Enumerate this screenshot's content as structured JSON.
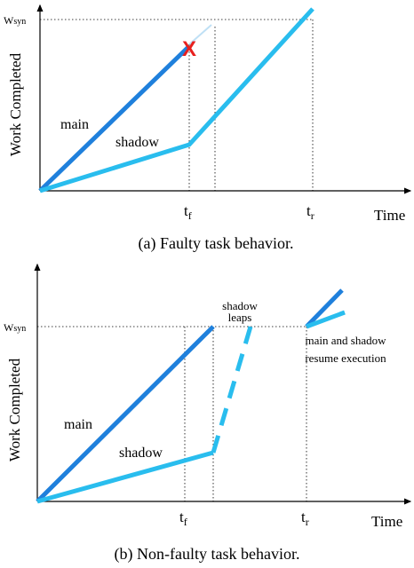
{
  "panels": [
    {
      "y_label": "Work Completed",
      "x_label": "Time",
      "w_base": "W",
      "w_sub": "syn",
      "tf_base": "t",
      "tf_sub": "f",
      "tr_base": "t",
      "tr_sub": "r",
      "main": "main",
      "shadow": "shadow",
      "marker": "X",
      "caption": "(a) Faulty task behavior."
    },
    {
      "y_label": "Work Completed",
      "x_label": "Time",
      "w_base": "W",
      "w_sub": "syn",
      "tf_base": "t",
      "tf_sub": "f",
      "tr_base": "t",
      "tr_sub": "r",
      "main": "main",
      "shadow": "shadow",
      "leap_note": [
        "shadow",
        "leaps"
      ],
      "resume_note": [
        "main and shadow",
        "resume execution"
      ],
      "caption": "(b) Non-faulty task behavior."
    }
  ]
}
